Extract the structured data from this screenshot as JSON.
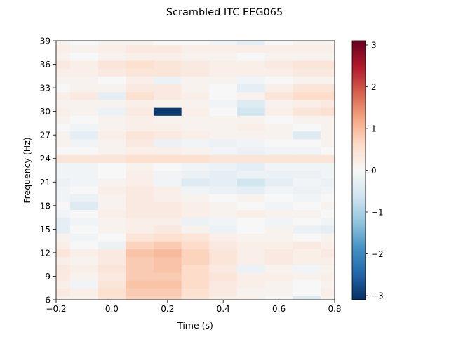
{
  "chart_data": {
    "type": "heatmap",
    "title": "Scrambled ITC EEG065",
    "xlabel": "Time (s)",
    "ylabel": "Frequency (Hz)",
    "xlim": [
      -0.2,
      0.8
    ],
    "ylim": [
      6,
      39
    ],
    "x_ticks": [
      -0.2,
      0.0,
      0.2,
      0.4,
      0.6,
      0.8
    ],
    "x_tick_labels": [
      "−0.2",
      "0.0",
      "0.2",
      "0.4",
      "0.6",
      "0.8"
    ],
    "y_ticks": [
      6,
      9,
      12,
      15,
      18,
      21,
      24,
      27,
      30,
      33,
      36,
      39
    ],
    "y_tick_labels": [
      "6",
      "9",
      "12",
      "15",
      "18",
      "21",
      "24",
      "27",
      "30",
      "33",
      "36",
      "39"
    ],
    "frequencies": [
      6,
      7,
      8,
      9,
      10,
      11,
      12,
      13,
      14,
      15,
      16,
      17,
      18,
      19,
      20,
      21,
      22,
      23,
      24,
      25,
      26,
      27,
      28,
      29,
      30,
      31,
      32,
      33,
      34,
      35,
      36,
      37,
      38,
      39
    ],
    "times": [
      -0.2,
      -0.1,
      0.0,
      0.1,
      0.2,
      0.3,
      0.4,
      0.5,
      0.6,
      0.7,
      0.8
    ],
    "values": [
      [
        0.15,
        0.1,
        0.4,
        0.7,
        0.7,
        0.4,
        0.2,
        0.1,
        0.0,
        -0.4,
        0.1
      ],
      [
        0.3,
        0.2,
        0.5,
        0.8,
        0.8,
        0.5,
        0.3,
        0.1,
        0.1,
        0.0,
        0.2
      ],
      [
        0.2,
        -0.1,
        0.4,
        0.9,
        0.9,
        0.6,
        0.3,
        0.2,
        0.1,
        0.0,
        0.1
      ],
      [
        0.3,
        0.1,
        0.3,
        0.8,
        0.8,
        0.6,
        0.4,
        0.2,
        0.2,
        0.1,
        0.2
      ],
      [
        0.3,
        0.2,
        0.4,
        0.8,
        0.9,
        0.6,
        0.3,
        -0.2,
        0.1,
        -0.1,
        0.1
      ],
      [
        0.2,
        0.1,
        0.3,
        0.8,
        0.9,
        0.7,
        0.4,
        0.2,
        0.3,
        0.2,
        0.2
      ],
      [
        0.4,
        0.2,
        0.3,
        0.9,
        1.0,
        0.7,
        0.4,
        0.2,
        0.3,
        0.2,
        0.3
      ],
      [
        0.2,
        0.0,
        -0.2,
        0.7,
        0.8,
        0.6,
        0.3,
        0.2,
        0.2,
        0.3,
        0.2
      ],
      [
        0.1,
        -0.1,
        0.0,
        0.4,
        0.5,
        0.4,
        0.2,
        0.1,
        0.1,
        0.0,
        0.1
      ],
      [
        -0.3,
        0.0,
        0.1,
        0.2,
        0.3,
        0.1,
        -0.2,
        0.0,
        0.1,
        -0.2,
        -0.3
      ],
      [
        -0.3,
        -0.1,
        0.1,
        0.2,
        0.2,
        -0.2,
        -0.1,
        0.0,
        -0.1,
        0.0,
        -0.1
      ],
      [
        -0.1,
        0.0,
        0.2,
        0.3,
        0.3,
        0.2,
        0.1,
        0.2,
        0.1,
        0.1,
        0.0
      ],
      [
        0.0,
        -0.4,
        0.1,
        0.3,
        0.3,
        0.2,
        0.1,
        0.0,
        -0.1,
        0.0,
        0.1
      ],
      [
        -0.1,
        -0.2,
        0.1,
        0.3,
        0.2,
        0.1,
        0.0,
        0.1,
        0.0,
        -0.1,
        0.0
      ],
      [
        -0.1,
        0.0,
        0.2,
        0.3,
        0.2,
        -0.1,
        -0.2,
        -0.3,
        -0.1,
        -0.2,
        -0.1
      ],
      [
        -0.2,
        -0.1,
        0.1,
        0.2,
        -0.1,
        -0.4,
        -0.3,
        -0.6,
        -0.3,
        -0.1,
        -0.2
      ],
      [
        -0.1,
        -0.1,
        0.0,
        0.2,
        -0.1,
        -0.2,
        -0.3,
        -0.2,
        -0.2,
        -0.2,
        -0.1
      ],
      [
        -0.1,
        -0.1,
        0.0,
        0.1,
        0.0,
        -0.1,
        -0.2,
        -0.3,
        -0.1,
        -0.1,
        -0.1
      ],
      [
        0.4,
        0.4,
        0.4,
        0.5,
        0.5,
        0.5,
        0.4,
        0.4,
        0.4,
        0.4,
        0.4
      ],
      [
        0.0,
        0.0,
        0.1,
        0.2,
        0.2,
        0.1,
        -0.1,
        -0.2,
        -0.1,
        -0.1,
        0.0
      ],
      [
        0.1,
        -0.1,
        0.1,
        0.3,
        -0.2,
        -0.1,
        -0.2,
        -0.1,
        0.0,
        0.0,
        0.1
      ],
      [
        0.1,
        -0.3,
        0.2,
        0.4,
        0.3,
        0.2,
        0.1,
        0.1,
        0.1,
        -0.4,
        0.1
      ],
      [
        0.0,
        -0.1,
        0.1,
        0.2,
        0.2,
        0.1,
        0.1,
        0.2,
        0.1,
        0.0,
        0.1
      ],
      [
        0.1,
        0.0,
        0.1,
        0.2,
        0.1,
        0.1,
        0.1,
        0.1,
        0.0,
        0.1,
        0.1
      ],
      [
        0.2,
        0.1,
        -0.2,
        0.3,
        -3.0,
        0.2,
        0.0,
        -0.6,
        0.2,
        0.4,
        0.5
      ],
      [
        0.1,
        0.1,
        0.1,
        0.2,
        0.1,
        0.1,
        -0.1,
        -0.4,
        0.1,
        0.2,
        0.3
      ],
      [
        0.2,
        0.3,
        -0.3,
        0.5,
        0.3,
        0.2,
        0.0,
        0.1,
        0.4,
        0.6,
        0.6
      ],
      [
        0.0,
        0.1,
        0.1,
        0.3,
        0.3,
        0.1,
        0.0,
        -0.3,
        0.2,
        0.4,
        0.4
      ],
      [
        0.1,
        0.1,
        0.0,
        0.2,
        -0.2,
        0.1,
        0.1,
        -0.1,
        0.0,
        0.1,
        0.1
      ],
      [
        0.2,
        0.2,
        0.3,
        0.4,
        0.4,
        0.3,
        0.2,
        0.2,
        0.2,
        0.3,
        0.3
      ],
      [
        0.3,
        0.2,
        0.4,
        0.5,
        0.4,
        0.3,
        0.2,
        0.2,
        0.3,
        0.4,
        0.4
      ],
      [
        0.1,
        0.0,
        0.1,
        0.2,
        0.2,
        0.1,
        0.1,
        0.0,
        0.1,
        0.1,
        0.1
      ],
      [
        0.2,
        0.1,
        0.2,
        0.3,
        0.3,
        0.2,
        0.2,
        0.2,
        0.2,
        0.2,
        0.2
      ],
      [
        0.1,
        0.0,
        0.1,
        0.1,
        0.0,
        0.0,
        -0.1,
        -0.3,
        0.0,
        0.1,
        0.1
      ]
    ],
    "colorbar": {
      "range": [
        -3.1,
        3.1
      ],
      "ticks": [
        -3,
        -2,
        -1,
        0,
        1,
        2,
        3
      ],
      "tick_labels": [
        "−3",
        "−2",
        "−1",
        "0",
        "1",
        "2",
        "3"
      ],
      "colormap": "RdBu_r",
      "colors": [
        "#053061",
        "#2166ac",
        "#4393c3",
        "#92c5de",
        "#d1e5f0",
        "#f7f7f7",
        "#fddbc7",
        "#f4a582",
        "#d6604d",
        "#b2182b",
        "#67001f"
      ]
    },
    "grid": false,
    "legend": "none"
  }
}
